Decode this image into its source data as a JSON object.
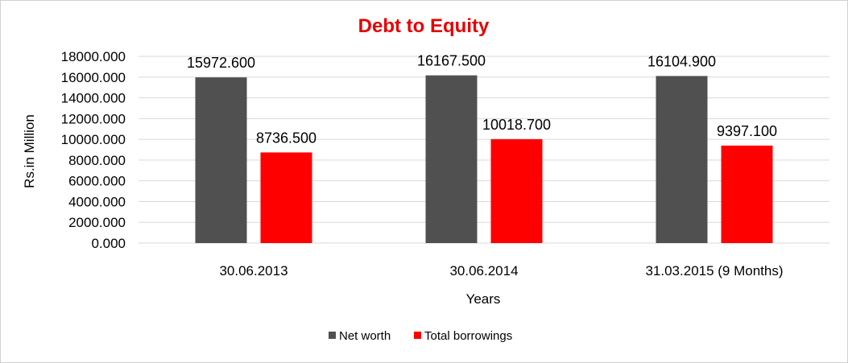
{
  "chart_data": {
    "type": "bar",
    "title": "Debt to Equity",
    "xlabel": "Years",
    "ylabel": "Rs.in Million",
    "categories": [
      "30.06.2013",
      "30.06.2014",
      "31.03.2015 (9 Months)"
    ],
    "series": [
      {
        "name": "Net worth",
        "values": [
          15972.6,
          16167.5,
          16104.9
        ],
        "labels": [
          "15972.600",
          "16167.500",
          "16104.900"
        ],
        "color": "#505050"
      },
      {
        "name": "Total borrowings",
        "values": [
          8736.5,
          10018.7,
          9397.1
        ],
        "labels": [
          "8736.500",
          "10018.700",
          "9397.100"
        ],
        "color": "#ff0000"
      }
    ],
    "ylim": [
      0,
      18000
    ],
    "yticks": [
      "0.000",
      "2000.000",
      "4000.000",
      "6000.000",
      "8000.000",
      "10000.000",
      "12000.000",
      "14000.000",
      "16000.000",
      "18000.000"
    ],
    "grid": true,
    "legend_position": "bottom"
  }
}
